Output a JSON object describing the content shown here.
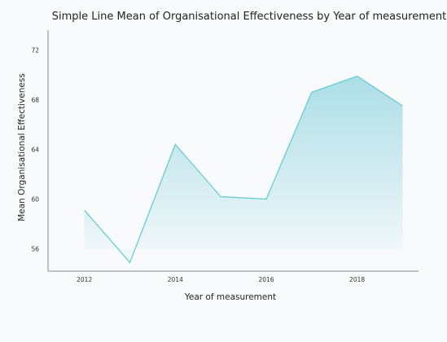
{
  "chart_data": {
    "type": "area",
    "title": "Simple Line Mean of Organisational Effectiveness by Year of measurement",
    "xlabel": "Year of measurement",
    "ylabel": "Mean Organisational Effectiveness",
    "x": [
      2012,
      2013,
      2014,
      2015,
      2016,
      2017,
      2018,
      2019
    ],
    "x_ticks": [
      "2012",
      "2014",
      "2016",
      "2018"
    ],
    "y_ticks": [
      "56",
      "60",
      "64",
      "68",
      "72"
    ],
    "series": [
      {
        "values": [
          59.1,
          54.9,
          64.4,
          60.2,
          60.0,
          68.6,
          69.9,
          67.5
        ]
      }
    ],
    "xlim": [
      2011.2,
      2019.35
    ],
    "ylim": [
      54.2,
      73.6
    ],
    "grid": false,
    "colors": {
      "line": "#5ccbd1",
      "fill": "#9fd9e3",
      "axis": "#888888",
      "background": "#f8fafb"
    }
  }
}
